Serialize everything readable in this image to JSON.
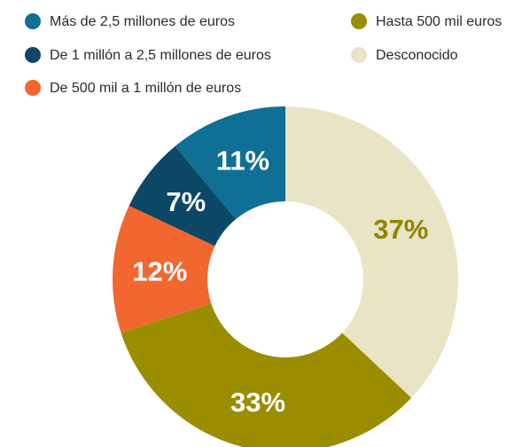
{
  "chart_data": {
    "type": "donut",
    "categories": [
      "Más de 2,5 millones de euros",
      "De 1 millón a 2,5 millones de euros",
      "De 500 mil a 1 millón de euros",
      "Hasta 500 mil euros",
      "Desconocido"
    ],
    "values": [
      11,
      7,
      12,
      33,
      37
    ],
    "value_labels": [
      "11%",
      "7%",
      "12%",
      "33%",
      "37%"
    ],
    "colors": [
      "#0f6f94",
      "#0c4866",
      "#f1672f",
      "#9a8e00",
      "#e9e4c5"
    ],
    "label_colors": [
      "#ffffff",
      "#ffffff",
      "#ffffff",
      "#ffffff",
      "#8f8400"
    ],
    "legend": "top"
  }
}
